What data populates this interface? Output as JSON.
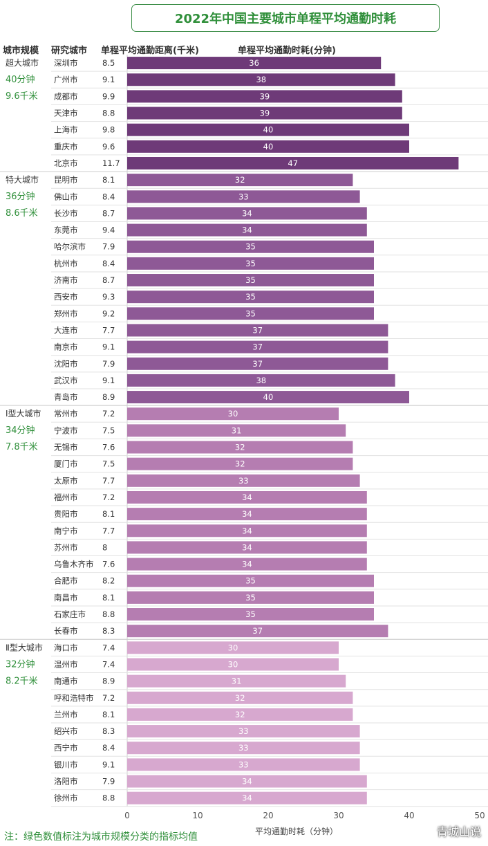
{
  "title": "2022年中国主要城市单程平均通勤时耗",
  "headers": {
    "scale": "城市规模",
    "city": "研究城市",
    "distance": "单程平均通勤距离(千米)",
    "time": "单程平均通勤时耗(分钟)"
  },
  "note": "注：绿色数值标注为城市规模分类的指标均值",
  "watermark": "青城山说",
  "colors": {
    "accent_green": "#2f8f3a",
    "row_line": "#e2e2e2"
  },
  "chart_data": {
    "type": "bar",
    "orientation": "horizontal",
    "xlabel": "平均通勤时耗（分钟）",
    "xlim": [
      0,
      50
    ],
    "xticks": [
      0,
      10,
      20,
      30,
      40,
      50
    ],
    "groups": [
      {
        "label": "超大城市",
        "mean_time": "40分钟",
        "mean_distance": "9.6千米",
        "color": "#6e3a78",
        "cities": [
          {
            "name": "深圳市",
            "distance": "8.5",
            "time": 36
          },
          {
            "name": "广州市",
            "distance": "9.1",
            "time": 38
          },
          {
            "name": "成都市",
            "distance": "9.9",
            "time": 39
          },
          {
            "name": "天津市",
            "distance": "8.8",
            "time": 39
          },
          {
            "name": "上海市",
            "distance": "9.8",
            "time": 40
          },
          {
            "name": "重庆市",
            "distance": "9.6",
            "time": 40
          },
          {
            "name": "北京市",
            "distance": "11.7",
            "time": 47
          }
        ]
      },
      {
        "label": "特大城市",
        "mean_time": "36分钟",
        "mean_distance": "8.6千米",
        "color": "#8e5996",
        "cities": [
          {
            "name": "昆明市",
            "distance": "8.1",
            "time": 32
          },
          {
            "name": "佛山市",
            "distance": "8.4",
            "time": 33
          },
          {
            "name": "长沙市",
            "distance": "8.7",
            "time": 34
          },
          {
            "name": "东莞市",
            "distance": "9.4",
            "time": 34
          },
          {
            "name": "哈尔滨市",
            "distance": "7.9",
            "time": 35
          },
          {
            "name": "杭州市",
            "distance": "8.4",
            "time": 35
          },
          {
            "name": "济南市",
            "distance": "8.7",
            "time": 35
          },
          {
            "name": "西安市",
            "distance": "9.3",
            "time": 35
          },
          {
            "name": "郑州市",
            "distance": "9.2",
            "time": 35
          },
          {
            "name": "大连市",
            "distance": "7.7",
            "time": 37
          },
          {
            "name": "南京市",
            "distance": "9.1",
            "time": 37
          },
          {
            "name": "沈阳市",
            "distance": "7.9",
            "time": 37
          },
          {
            "name": "武汉市",
            "distance": "9.1",
            "time": 38
          },
          {
            "name": "青岛市",
            "distance": "8.9",
            "time": 40
          }
        ]
      },
      {
        "label": "Ⅰ型大城市",
        "mean_time": "34分钟",
        "mean_distance": "7.8千米",
        "color": "#b57db1",
        "cities": [
          {
            "name": "常州市",
            "distance": "7.2",
            "time": 30
          },
          {
            "name": "宁波市",
            "distance": "7.5",
            "time": 31
          },
          {
            "name": "无锡市",
            "distance": "7.6",
            "time": 32
          },
          {
            "name": "厦门市",
            "distance": "7.5",
            "time": 32
          },
          {
            "name": "太原市",
            "distance": "7.7",
            "time": 33
          },
          {
            "name": "福州市",
            "distance": "7.2",
            "time": 34
          },
          {
            "name": "贵阳市",
            "distance": "8.1",
            "time": 34
          },
          {
            "name": "南宁市",
            "distance": "7.7",
            "time": 34
          },
          {
            "name": "苏州市",
            "distance": "8",
            "time": 34
          },
          {
            "name": "乌鲁木齐市",
            "distance": "7.6",
            "time": 34
          },
          {
            "name": "合肥市",
            "distance": "8.2",
            "time": 35
          },
          {
            "name": "南昌市",
            "distance": "8.1",
            "time": 35
          },
          {
            "name": "石家庄市",
            "distance": "8.8",
            "time": 35
          },
          {
            "name": "长春市",
            "distance": "8.3",
            "time": 37
          }
        ]
      },
      {
        "label": "Ⅱ型大城市",
        "mean_time": "32分钟",
        "mean_distance": "8.2千米",
        "color": "#d7a8cf",
        "cities": [
          {
            "name": "海口市",
            "distance": "7.4",
            "time": 30
          },
          {
            "name": "温州市",
            "distance": "7.4",
            "time": 30
          },
          {
            "name": "南通市",
            "distance": "8.9",
            "time": 31
          },
          {
            "name": "呼和浩特市",
            "distance": "7.2",
            "time": 32
          },
          {
            "name": "兰州市",
            "distance": "8.1",
            "time": 32
          },
          {
            "name": "绍兴市",
            "distance": "8.3",
            "time": 33
          },
          {
            "name": "西宁市",
            "distance": "8.4",
            "time": 33
          },
          {
            "name": "银川市",
            "distance": "9.1",
            "time": 33
          },
          {
            "name": "洛阳市",
            "distance": "7.9",
            "time": 34
          },
          {
            "name": "徐州市",
            "distance": "8.8",
            "time": 34
          }
        ]
      }
    ]
  }
}
